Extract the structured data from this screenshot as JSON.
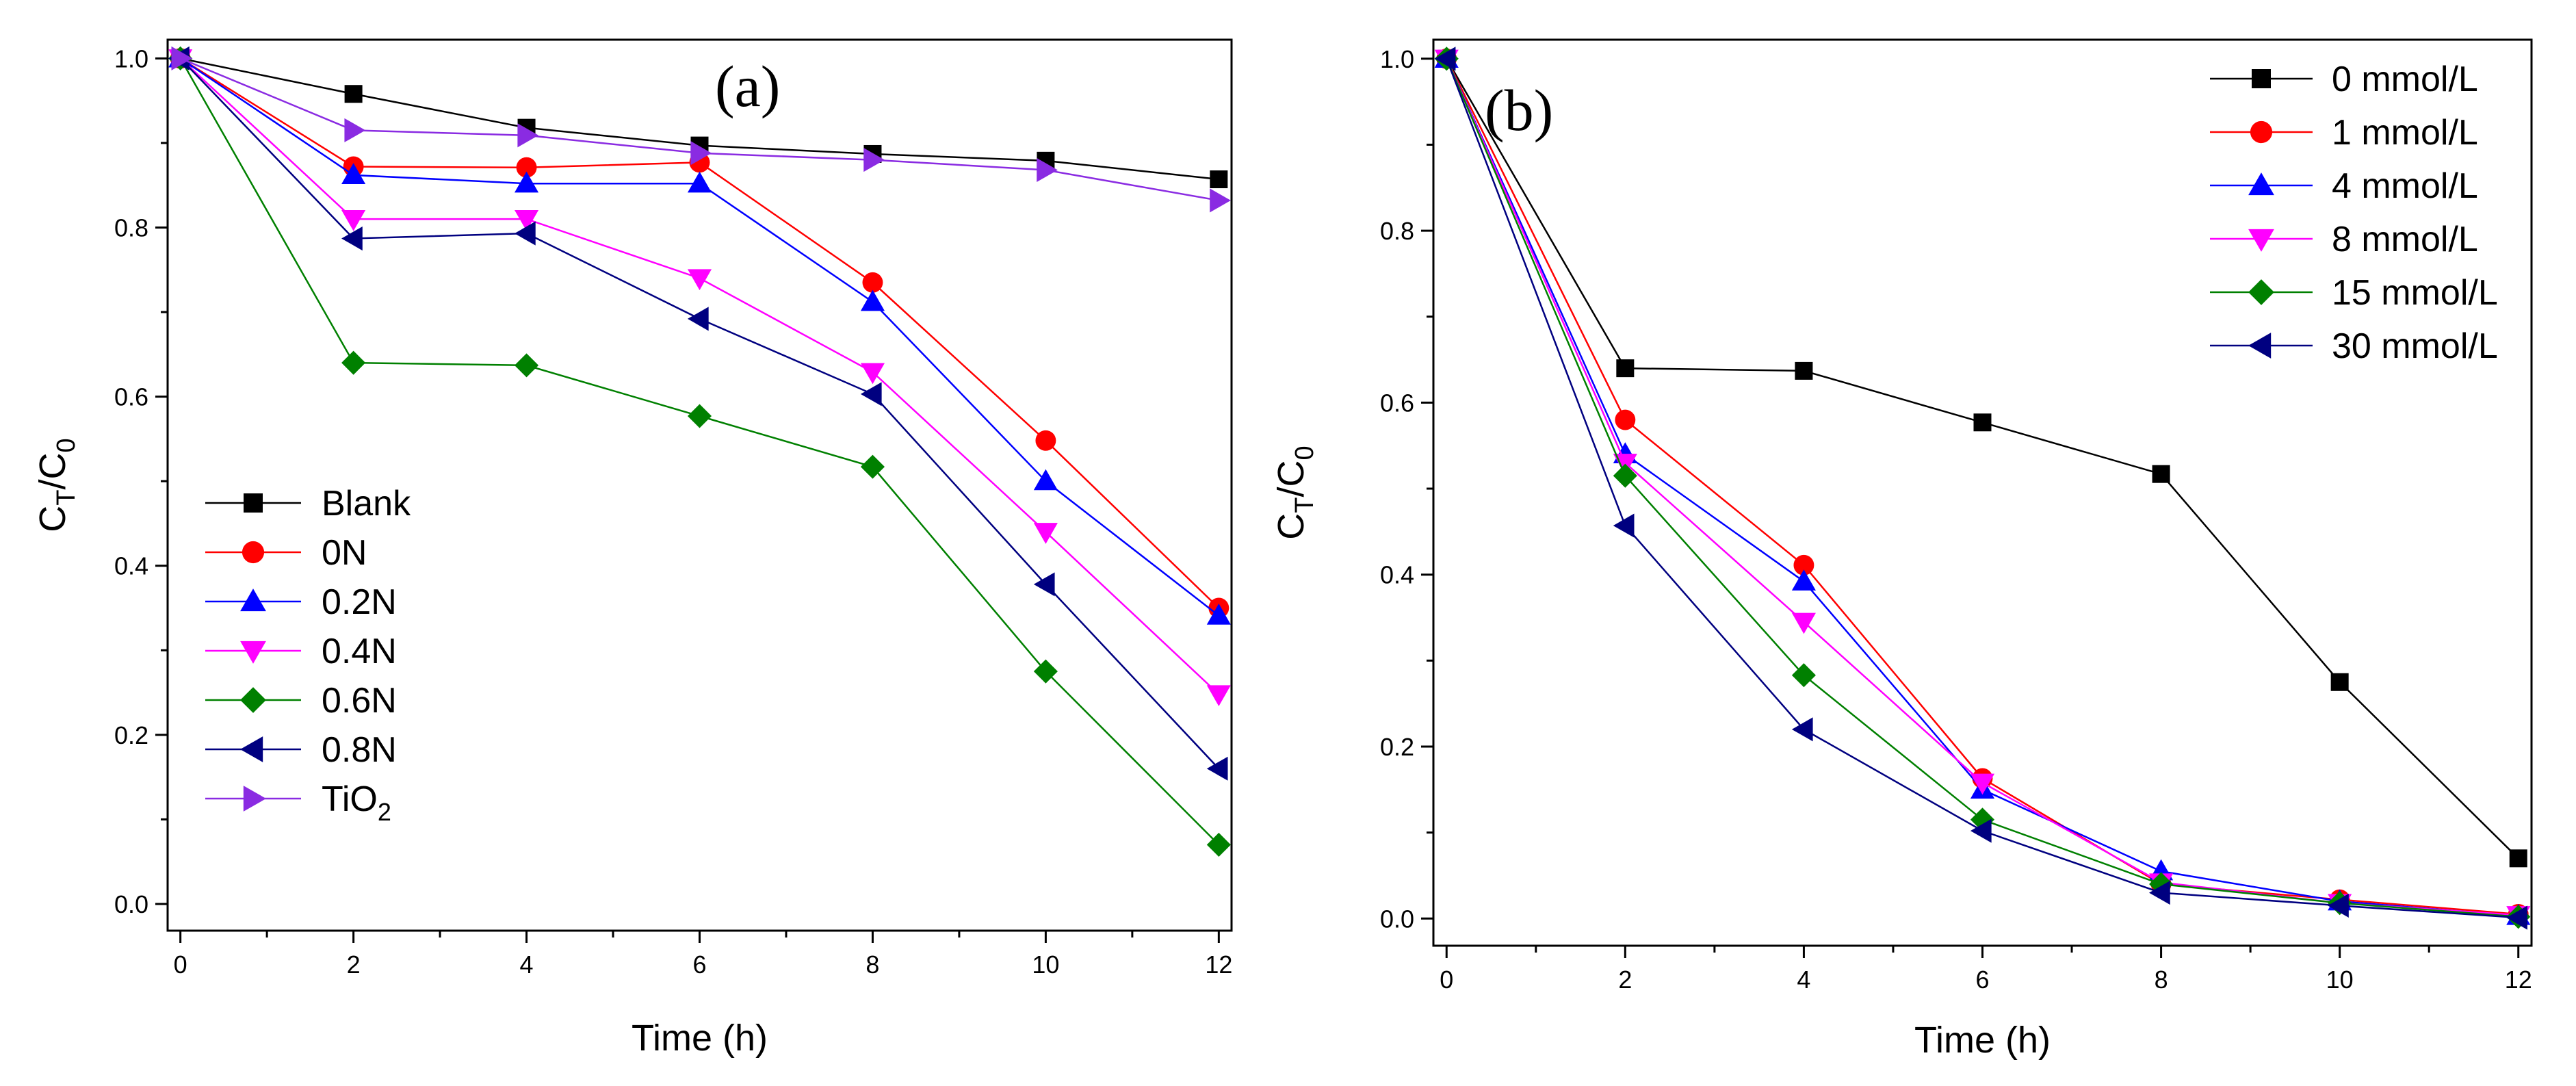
{
  "chart_data": [
    {
      "type": "line",
      "panel_label": "(a)",
      "xlabel": "Time (h)",
      "ylabel": "C_T/C_0",
      "xlim": [
        0,
        12
      ],
      "ylim": [
        0,
        1.0
      ],
      "x_ticks": [
        "0",
        "2",
        "4",
        "6",
        "8",
        "10",
        "12"
      ],
      "y_ticks": [
        "0.0",
        "0.2",
        "0.4",
        "0.6",
        "0.8",
        "1.0"
      ],
      "legend_position": "bottom-left",
      "x": [
        0,
        2,
        4,
        6,
        8,
        10,
        12
      ],
      "series": [
        {
          "name": "Blank",
          "marker": "square",
          "color": "#000000",
          "values": [
            1.0,
            0.958,
            0.918,
            0.897,
            0.887,
            0.879,
            0.857
          ]
        },
        {
          "name": "0N",
          "marker": "circle",
          "color": "#ff0000",
          "values": [
            1.0,
            0.872,
            0.871,
            0.877,
            0.735,
            0.548,
            0.35
          ]
        },
        {
          "name": "0.2N",
          "marker": "triangle-up",
          "color": "#0000ff",
          "values": [
            1.0,
            0.862,
            0.852,
            0.852,
            0.712,
            0.5,
            0.341
          ]
        },
        {
          "name": "0.4N",
          "marker": "triangle-down",
          "color": "#ff00ff",
          "values": [
            1.0,
            0.81,
            0.81,
            0.74,
            0.629,
            0.44,
            0.248
          ]
        },
        {
          "name": "0.6N",
          "marker": "diamond",
          "color": "#008000",
          "values": [
            1.0,
            0.64,
            0.637,
            0.577,
            0.517,
            0.275,
            0.07
          ]
        },
        {
          "name": "0.8N",
          "marker": "triangle-left",
          "color": "#000080",
          "values": [
            1.0,
            0.787,
            0.793,
            0.692,
            0.603,
            0.378,
            0.16
          ]
        },
        {
          "name": "TiO2",
          "name_main": "TiO",
          "name_sub": "2",
          "marker": "triangle-right",
          "color": "#8a2be2",
          "values": [
            1.0,
            0.915,
            0.909,
            0.888,
            0.88,
            0.868,
            0.832
          ]
        }
      ]
    },
    {
      "type": "line",
      "panel_label": "(b)",
      "xlabel": "Time (h)",
      "ylabel": "C_T/C_0",
      "xlim": [
        0,
        12
      ],
      "ylim": [
        0,
        1.0
      ],
      "x_ticks": [
        "0",
        "2",
        "4",
        "6",
        "8",
        "10",
        "12"
      ],
      "y_ticks": [
        "0.0",
        "0.2",
        "0.4",
        "0.6",
        "0.8",
        "1.0"
      ],
      "legend_position": "top-right",
      "x": [
        0,
        2,
        4,
        6,
        8,
        10,
        12
      ],
      "series": [
        {
          "name": "0 mmol/L",
          "marker": "square",
          "color": "#000000",
          "values": [
            1.0,
            0.64,
            0.637,
            0.577,
            0.517,
            0.275,
            0.07
          ]
        },
        {
          "name": "1 mmol/L",
          "marker": "circle",
          "color": "#ff0000",
          "values": [
            1.0,
            0.58,
            0.411,
            0.163,
            0.04,
            0.022,
            0.005
          ]
        },
        {
          "name": "4 mmol/L",
          "marker": "triangle-up",
          "color": "#0000ff",
          "values": [
            1.0,
            0.54,
            0.392,
            0.15,
            0.055,
            0.02,
            0.003
          ]
        },
        {
          "name": "8 mmol/L",
          "marker": "triangle-down",
          "color": "#ff00ff",
          "values": [
            1.0,
            0.53,
            0.345,
            0.158,
            0.042,
            0.018,
            0.004
          ]
        },
        {
          "name": "15 mmol/L",
          "marker": "diamond",
          "color": "#008000",
          "values": [
            1.0,
            0.515,
            0.283,
            0.115,
            0.04,
            0.018,
            0.002
          ]
        },
        {
          "name": "30 mmol/L",
          "marker": "triangle-left",
          "color": "#000080",
          "values": [
            1.0,
            0.457,
            0.22,
            0.102,
            0.03,
            0.015,
            0.001
          ]
        }
      ]
    }
  ]
}
